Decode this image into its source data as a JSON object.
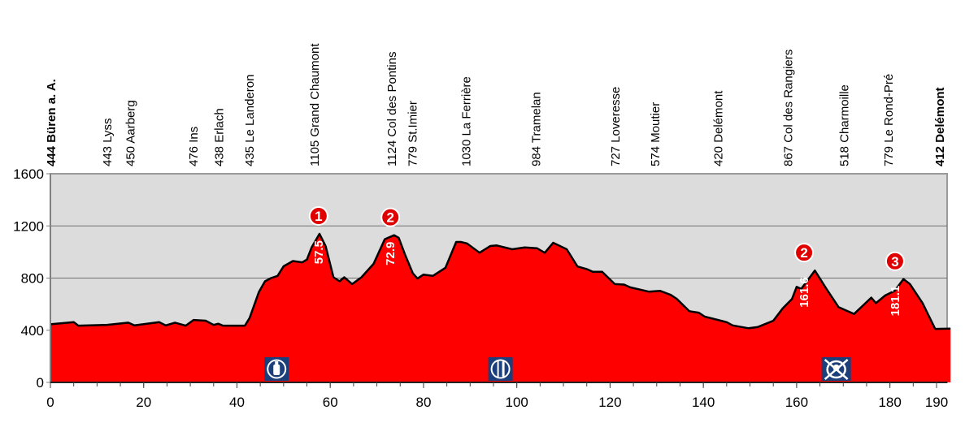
{
  "chart_data": {
    "type": "area",
    "title": "",
    "xlabel": "",
    "ylabel": "",
    "xlim": [
      0,
      193
    ],
    "ylim": [
      0,
      1600
    ],
    "grid": true,
    "x_ticks": [
      0,
      20,
      40,
      60,
      80,
      100,
      120,
      140,
      160,
      180,
      190
    ],
    "y_ticks": [
      0,
      400,
      800,
      1200,
      1600
    ],
    "colors": {
      "fill": "#ff0000",
      "background": "#dcdcdc",
      "line": "#000000",
      "icon": "#1b3f7a"
    },
    "profile": [
      [
        0,
        446
      ],
      [
        5,
        462
      ],
      [
        6,
        435
      ],
      [
        12,
        441
      ],
      [
        16.7,
        458
      ],
      [
        18,
        437
      ],
      [
        23.3,
        462
      ],
      [
        24.7,
        437
      ],
      [
        26.7,
        458
      ],
      [
        29,
        435
      ],
      [
        30.7,
        479
      ],
      [
        33.3,
        473
      ],
      [
        35,
        441
      ],
      [
        36,
        450
      ],
      [
        37,
        435
      ],
      [
        41.7,
        435
      ],
      [
        42.7,
        494
      ],
      [
        44.7,
        692
      ],
      [
        46,
        775
      ],
      [
        47.3,
        800
      ],
      [
        48.7,
        817
      ],
      [
        50,
        890
      ],
      [
        52,
        931
      ],
      [
        54,
        921
      ],
      [
        55,
        942
      ],
      [
        56,
        1035
      ],
      [
        57.7,
        1139
      ],
      [
        59,
        1046
      ],
      [
        60.7,
        806
      ],
      [
        62,
        775
      ],
      [
        63,
        806
      ],
      [
        64.7,
        754
      ],
      [
        66.7,
        806
      ],
      [
        69.3,
        910
      ],
      [
        71.7,
        1098
      ],
      [
        73.7,
        1129
      ],
      [
        74.7,
        1108
      ],
      [
        76,
        983
      ],
      [
        77.7,
        837
      ],
      [
        78.7,
        796
      ],
      [
        80,
        827
      ],
      [
        82,
        817
      ],
      [
        84.7,
        879
      ],
      [
        87,
        1077
      ],
      [
        88,
        1077
      ],
      [
        89.3,
        1066
      ],
      [
        92,
        994
      ],
      [
        94.3,
        1046
      ],
      [
        95.7,
        1050
      ],
      [
        99,
        1021
      ],
      [
        101.7,
        1035
      ],
      [
        104.3,
        1029
      ],
      [
        106,
        994
      ],
      [
        107.8,
        1071
      ],
      [
        110.7,
        1021
      ],
      [
        113,
        889
      ],
      [
        115,
        869
      ],
      [
        116.3,
        848
      ],
      [
        118.3,
        848
      ],
      [
        121,
        754
      ],
      [
        123,
        750
      ],
      [
        124.3,
        729
      ],
      [
        128.3,
        696
      ],
      [
        130.7,
        702
      ],
      [
        133,
        671
      ],
      [
        134.3,
        640
      ],
      [
        137,
        546
      ],
      [
        139,
        535
      ],
      [
        140.3,
        504
      ],
      [
        145,
        462
      ],
      [
        146.3,
        437
      ],
      [
        149.7,
        415
      ],
      [
        151.7,
        425
      ],
      [
        155,
        473
      ],
      [
        157,
        567
      ],
      [
        159,
        640
      ],
      [
        160,
        733
      ],
      [
        161,
        717
      ],
      [
        163.9,
        858
      ],
      [
        166.3,
        723
      ],
      [
        169,
        577
      ],
      [
        172.3,
        525
      ],
      [
        176,
        650
      ],
      [
        177,
        608
      ],
      [
        179,
        667
      ],
      [
        181,
        702
      ],
      [
        182.9,
        792
      ],
      [
        184.3,
        754
      ],
      [
        187,
        608
      ],
      [
        189.7,
        410
      ],
      [
        193,
        412
      ]
    ],
    "places": [
      {
        "km": 0,
        "label": "444 Büren a. A.",
        "bold": true
      },
      {
        "km": 12,
        "label": "443 Lyss"
      },
      {
        "km": 17,
        "label": "450 Aarberg"
      },
      {
        "km": 30.5,
        "label": "476 Ins"
      },
      {
        "km": 36,
        "label": "438 Erlach"
      },
      {
        "km": 42.5,
        "label": "435 Le Landeron"
      },
      {
        "km": 56.5,
        "label": "1105 Grand Chaumont"
      },
      {
        "km": 73,
        "label": "1124 Col des Pontins"
      },
      {
        "km": 77.5,
        "label": "779 St.Imier"
      },
      {
        "km": 89,
        "label": "1030 La Ferrière"
      },
      {
        "km": 104,
        "label": "984 Tramelan"
      },
      {
        "km": 121,
        "label": "727 Loveresse"
      },
      {
        "km": 129.5,
        "label": "574 Moutier"
      },
      {
        "km": 143,
        "label": "420 Delémont"
      },
      {
        "km": 158,
        "label": "867 Col des Rangiers"
      },
      {
        "km": 170,
        "label": "518 Charmoille"
      },
      {
        "km": 179.5,
        "label": "779 Le Rond-Pré"
      },
      {
        "km": 190.5,
        "label": "412 Delémont",
        "bold": true
      }
    ],
    "climbs": [
      {
        "km": 57.5,
        "elev": 1139,
        "category": "1",
        "km_label": "57.5"
      },
      {
        "km": 72.9,
        "elev": 1129,
        "category": "2",
        "km_label": "72.9"
      },
      {
        "km": 161.6,
        "elev": 858,
        "category": "2",
        "km_label": "161.6"
      },
      {
        "km": 181.1,
        "elev": 792,
        "category": "3",
        "km_label": "181.1"
      }
    ],
    "icons": [
      {
        "km": 48.5,
        "icon": "water-bottle-icon"
      },
      {
        "km": 96.5,
        "icon": "fork-knife-icon"
      },
      {
        "km": 168.5,
        "icon": "no-feed-zone-icon"
      }
    ]
  }
}
